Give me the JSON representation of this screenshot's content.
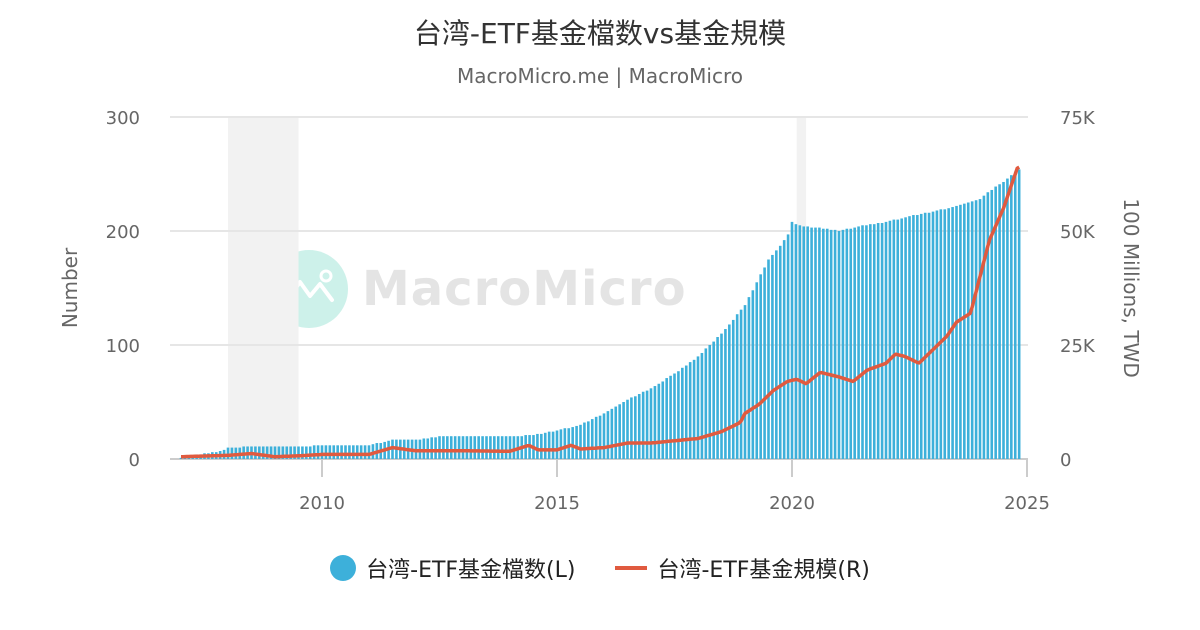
{
  "header": {
    "title": "台湾-ETF基金檔数vs基金規模",
    "subtitle": "MacroMicro.me | MacroMicro"
  },
  "watermark": {
    "text": "MacroMicro",
    "icon": "macromicro-logo-icon"
  },
  "legend": {
    "items": [
      {
        "label": "台湾-ETF基金檔数(L)",
        "marker": "circle",
        "color": "#3db0da"
      },
      {
        "label": "台湾-ETF基金規模(R)",
        "marker": "line",
        "color": "#e05a3f"
      }
    ]
  },
  "axes": {
    "left": {
      "title": "Number",
      "ticks": [
        "0",
        "100",
        "200",
        "300"
      ]
    },
    "right": {
      "title": "100 Millions, TWD",
      "ticks": [
        "0",
        "25K",
        "50K",
        "75K"
      ]
    },
    "x": {
      "ticks": [
        "2010",
        "2015",
        "2020",
        "2025"
      ]
    }
  },
  "chart_data": {
    "type": "bar+line",
    "title": "台湾-ETF基金檔数vs基金規模",
    "subtitle": "MacroMicro.me | MacroMicro",
    "xlabel": "",
    "ylabel_left": "Number",
    "ylabel_right": "100 Millions, TWD",
    "ylim_left": [
      0,
      300
    ],
    "ylim_right": [
      0,
      75000
    ],
    "xlim": [
      2006.8,
      2025.0
    ],
    "x_ticks": [
      2010,
      2015,
      2020,
      2025
    ],
    "grid": true,
    "legend_position": "bottom",
    "recession_bands": [
      [
        2008.0,
        2009.5
      ],
      [
        2020.1,
        2020.3
      ]
    ],
    "series": [
      {
        "name": "台湾-ETF基金檔数(L)",
        "type": "bar",
        "axis": "left",
        "color": "#3db0da",
        "points": [
          [
            2007.0,
            1
          ],
          [
            2007.5,
            5
          ],
          [
            2007.8,
            6
          ],
          [
            2008.0,
            10
          ],
          [
            2008.5,
            11
          ],
          [
            2009.0,
            11
          ],
          [
            2009.5,
            11
          ],
          [
            2010.0,
            12
          ],
          [
            2010.5,
            12
          ],
          [
            2011.0,
            12
          ],
          [
            2011.3,
            15
          ],
          [
            2011.5,
            17
          ],
          [
            2012.0,
            17
          ],
          [
            2012.5,
            20
          ],
          [
            2013.0,
            20
          ],
          [
            2013.5,
            20
          ],
          [
            2014.0,
            20
          ],
          [
            2014.5,
            21
          ],
          [
            2015.0,
            25
          ],
          [
            2015.5,
            30
          ],
          [
            2016.0,
            40
          ],
          [
            2016.5,
            52
          ],
          [
            2017.0,
            62
          ],
          [
            2017.5,
            75
          ],
          [
            2018.0,
            90
          ],
          [
            2018.5,
            110
          ],
          [
            2019.0,
            135
          ],
          [
            2019.5,
            175
          ],
          [
            2019.9,
            195
          ],
          [
            2020.0,
            208
          ],
          [
            2020.2,
            204
          ],
          [
            2020.5,
            203
          ],
          [
            2021.0,
            200
          ],
          [
            2021.5,
            205
          ],
          [
            2022.0,
            208
          ],
          [
            2022.5,
            213
          ],
          [
            2023.0,
            217
          ],
          [
            2023.5,
            222
          ],
          [
            2024.0,
            228
          ],
          [
            2024.3,
            238
          ],
          [
            2024.6,
            246
          ],
          [
            2024.8,
            254
          ]
        ]
      },
      {
        "name": "台湾-ETF基金規模(R)",
        "type": "line",
        "axis": "right",
        "color": "#e05a3f",
        "points": [
          [
            2007.0,
            500
          ],
          [
            2008.0,
            800
          ],
          [
            2008.5,
            1200
          ],
          [
            2009.0,
            500
          ],
          [
            2009.5,
            700
          ],
          [
            2010.0,
            1000
          ],
          [
            2011.0,
            1000
          ],
          [
            2011.5,
            2500
          ],
          [
            2012.0,
            1800
          ],
          [
            2013.0,
            1800
          ],
          [
            2014.0,
            1700
          ],
          [
            2014.4,
            3000
          ],
          [
            2014.6,
            2000
          ],
          [
            2015.0,
            2000
          ],
          [
            2015.3,
            3000
          ],
          [
            2015.5,
            2200
          ],
          [
            2016.0,
            2500
          ],
          [
            2016.5,
            3500
          ],
          [
            2017.0,
            3500
          ],
          [
            2017.5,
            4000
          ],
          [
            2018.0,
            4500
          ],
          [
            2018.5,
            6000
          ],
          [
            2018.9,
            8000
          ],
          [
            2019.0,
            10000
          ],
          [
            2019.3,
            12000
          ],
          [
            2019.6,
            15000
          ],
          [
            2019.9,
            17000
          ],
          [
            2020.1,
            17500
          ],
          [
            2020.3,
            16500
          ],
          [
            2020.6,
            19000
          ],
          [
            2021.0,
            18000
          ],
          [
            2021.3,
            17000
          ],
          [
            2021.6,
            19500
          ],
          [
            2022.0,
            21000
          ],
          [
            2022.2,
            23000
          ],
          [
            2022.4,
            22500
          ],
          [
            2022.7,
            21000
          ],
          [
            2023.0,
            24000
          ],
          [
            2023.3,
            27000
          ],
          [
            2023.5,
            30000
          ],
          [
            2023.8,
            32000
          ],
          [
            2024.0,
            40000
          ],
          [
            2024.2,
            48000
          ],
          [
            2024.5,
            55000
          ],
          [
            2024.8,
            64000
          ]
        ]
      }
    ]
  }
}
